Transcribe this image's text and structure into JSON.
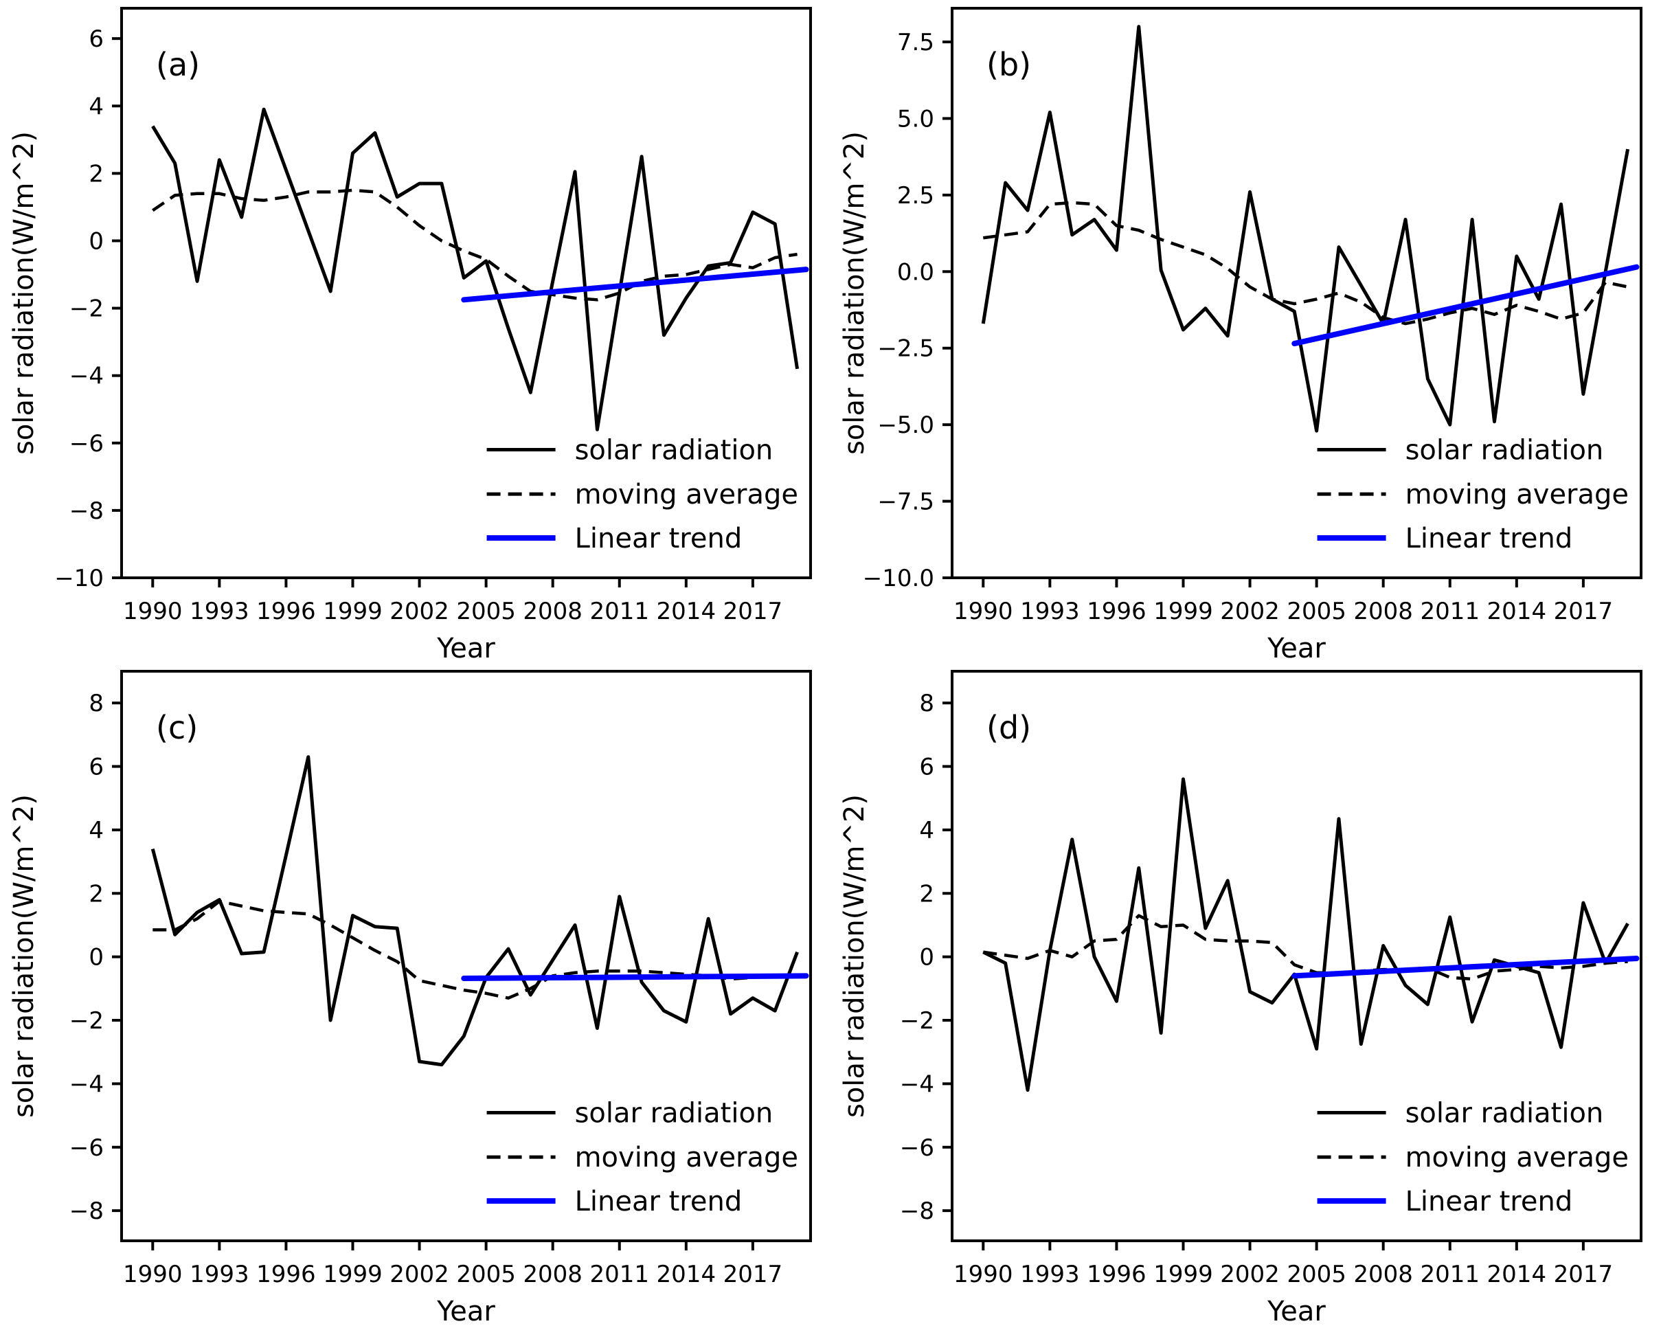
{
  "figure": {
    "background": "#ffffff",
    "text_color": "#000000",
    "accent_blue": "#0000ff",
    "xlabel": "Year",
    "ylabel": "solar radiation(W/m^2)",
    "legend_entries": [
      "solar radiation",
      "moving average",
      "Linear trend"
    ],
    "legend_position": "lower right",
    "grid": false,
    "xlim": [
      1988.6,
      2019.6
    ],
    "xtick_years": [
      1990,
      1993,
      1996,
      1999,
      2002,
      2005,
      2008,
      2011,
      2014,
      2017
    ],
    "xtick_labels": [
      "1990",
      "1993",
      "1996",
      "1999",
      "2002",
      "2005",
      "2008",
      "2011",
      "2014",
      "2017"
    ]
  },
  "chart_data": [
    {
      "type": "line",
      "panel": "(a)",
      "xlabel": "Year",
      "ylabel": "solar radiation(W/m^2)",
      "ylim": [
        -10,
        6.9
      ],
      "yticks": [
        6,
        4,
        2,
        0,
        -2,
        -4,
        -6,
        -8,
        -10
      ],
      "ytick_labels": [
        "6",
        "4",
        "2",
        "0",
        "−2",
        "−4",
        "−6",
        "−8",
        "−10"
      ],
      "x": [
        1990,
        1991,
        1992,
        1993,
        1994,
        1995,
        1996,
        1997,
        1998,
        1999,
        2000,
        2001,
        2002,
        2003,
        2004,
        2005,
        2006,
        2007,
        2008,
        2009,
        2010,
        2011,
        2012,
        2013,
        2014,
        2015,
        2016,
        2017,
        2018,
        2019
      ],
      "series": [
        {
          "name": "solar radiation",
          "style": "solid",
          "color": "#000000",
          "values": [
            3.4,
            2.3,
            -1.2,
            2.4,
            0.7,
            3.9,
            2.1,
            0.3,
            -1.5,
            2.6,
            3.2,
            1.3,
            1.7,
            1.7,
            -1.1,
            -0.6,
            -2.6,
            -4.5,
            -1.2,
            2.05,
            -5.6,
            -1.55,
            2.5,
            -2.8,
            -1.7,
            -0.75,
            -0.65,
            0.85,
            0.5,
            -3.8
          ]
        },
        {
          "name": "moving average",
          "style": "dashed",
          "color": "#000000",
          "values": [
            0.9,
            1.35,
            1.4,
            1.4,
            1.25,
            1.2,
            1.3,
            1.45,
            1.45,
            1.5,
            1.45,
            1.0,
            0.45,
            0.0,
            -0.3,
            -0.55,
            -1.05,
            -1.5,
            -1.6,
            -1.7,
            -1.75,
            -1.55,
            -1.2,
            -1.05,
            -1.0,
            -0.85,
            -0.7,
            -0.8,
            -0.5,
            -0.4
          ]
        },
        {
          "name": "Linear trend",
          "style": "solid",
          "color": "#0000ff",
          "x": [
            2004,
            2019.4
          ],
          "values": [
            -1.75,
            -0.85
          ]
        }
      ]
    },
    {
      "type": "line",
      "panel": "(b)",
      "xlabel": "Year",
      "ylabel": "solar radiation(W/m^2)",
      "ylim": [
        -10,
        8.6
      ],
      "yticks": [
        7.5,
        5.0,
        2.5,
        0.0,
        -2.5,
        -5.0,
        -7.5,
        -10.0
      ],
      "ytick_labels": [
        "7.5",
        "5.0",
        "2.5",
        "0.0",
        "−2.5",
        "−5.0",
        "−7.5",
        "−10.0"
      ],
      "x": [
        1990,
        1991,
        1992,
        1993,
        1994,
        1995,
        1996,
        1997,
        1998,
        1999,
        2000,
        2001,
        2002,
        2003,
        2004,
        2005,
        2006,
        2007,
        2008,
        2009,
        2010,
        2011,
        2012,
        2013,
        2014,
        2015,
        2016,
        2017,
        2018,
        2019
      ],
      "series": [
        {
          "name": "solar radiation",
          "style": "solid",
          "color": "#000000",
          "values": [
            -1.7,
            2.9,
            2.0,
            5.2,
            1.2,
            1.7,
            0.7,
            8.0,
            0.05,
            -1.9,
            -1.2,
            -2.1,
            2.6,
            -0.9,
            -1.3,
            -5.2,
            0.8,
            -0.45,
            -1.7,
            1.7,
            -3.5,
            -5.0,
            1.7,
            -4.9,
            0.5,
            -0.9,
            2.2,
            -4.0,
            0.0,
            4.0
          ]
        },
        {
          "name": "moving average",
          "style": "dashed",
          "color": "#000000",
          "values": [
            1.1,
            1.2,
            1.3,
            2.2,
            2.25,
            2.2,
            1.5,
            1.35,
            1.05,
            0.8,
            0.55,
            0.1,
            -0.5,
            -0.9,
            -1.05,
            -0.9,
            -0.7,
            -1.0,
            -1.5,
            -1.7,
            -1.55,
            -1.35,
            -1.2,
            -1.4,
            -1.1,
            -1.3,
            -1.55,
            -1.35,
            -0.35,
            -0.5
          ]
        },
        {
          "name": "Linear trend",
          "style": "solid",
          "color": "#0000ff",
          "x": [
            2004,
            2019.4
          ],
          "values": [
            -2.35,
            0.15
          ]
        }
      ]
    },
    {
      "type": "line",
      "panel": "(c)",
      "xlabel": "Year",
      "ylabel": "solar radiation(W/m^2)",
      "ylim": [
        -8.95,
        9.0
      ],
      "yticks": [
        8,
        6,
        4,
        2,
        0,
        -2,
        -4,
        -6,
        -8
      ],
      "ytick_labels": [
        "8",
        "6",
        "4",
        "2",
        "0",
        "−2",
        "−4",
        "−6",
        "−8"
      ],
      "x": [
        1990,
        1991,
        1992,
        1993,
        1994,
        1995,
        1996,
        1997,
        1998,
        1999,
        2000,
        2001,
        2002,
        2003,
        2004,
        2005,
        2006,
        2007,
        2008,
        2009,
        2010,
        2011,
        2012,
        2013,
        2014,
        2015,
        2016,
        2017,
        2018,
        2019
      ],
      "series": [
        {
          "name": "solar radiation",
          "style": "solid",
          "color": "#000000",
          "values": [
            3.4,
            0.7,
            1.4,
            1.8,
            0.1,
            0.15,
            3.2,
            6.3,
            -2.0,
            1.3,
            0.95,
            0.9,
            -3.3,
            -3.4,
            -2.5,
            -0.65,
            0.25,
            -1.2,
            -0.1,
            1.0,
            -2.25,
            1.9,
            -0.8,
            -1.7,
            -2.05,
            1.2,
            -1.8,
            -1.3,
            -1.7,
            0.15
          ]
        },
        {
          "name": "moving average",
          "style": "dashed",
          "color": "#000000",
          "values": [
            0.85,
            0.85,
            1.2,
            1.75,
            1.6,
            1.45,
            1.4,
            1.35,
            1.0,
            0.6,
            0.2,
            -0.15,
            -0.75,
            -0.9,
            -1.05,
            -1.15,
            -1.3,
            -1.0,
            -0.6,
            -0.5,
            -0.45,
            -0.45,
            -0.45,
            -0.5,
            -0.55,
            -0.6,
            -0.7,
            -0.65,
            -0.6,
            -0.6
          ]
        },
        {
          "name": "Linear trend",
          "style": "solid",
          "color": "#0000ff",
          "x": [
            2004,
            2019.4
          ],
          "values": [
            -0.68,
            -0.6
          ]
        }
      ]
    },
    {
      "type": "line",
      "panel": "(d)",
      "xlabel": "Year",
      "ylabel": "solar radiation(W/m^2)",
      "ylim": [
        -8.95,
        9.0
      ],
      "yticks": [
        8,
        6,
        4,
        2,
        0,
        -2,
        -4,
        -6,
        -8
      ],
      "ytick_labels": [
        "8",
        "6",
        "4",
        "2",
        "0",
        "−2",
        "−4",
        "−6",
        "−8"
      ],
      "x": [
        1990,
        1991,
        1992,
        1993,
        1994,
        1995,
        1996,
        1997,
        1998,
        1999,
        2000,
        2001,
        2002,
        2003,
        2004,
        2005,
        2006,
        2007,
        2008,
        2009,
        2010,
        2011,
        2012,
        2013,
        2014,
        2015,
        2016,
        2017,
        2018,
        2019
      ],
      "series": [
        {
          "name": "solar radiation",
          "style": "solid",
          "color": "#000000",
          "values": [
            0.15,
            -0.2,
            -4.2,
            0.2,
            3.7,
            0.0,
            -1.4,
            2.8,
            -2.4,
            5.6,
            0.9,
            2.4,
            -1.1,
            -1.45,
            -0.55,
            -2.9,
            4.35,
            -2.75,
            0.35,
            -0.9,
            -1.5,
            1.25,
            -2.05,
            -0.1,
            -0.3,
            -0.5,
            -2.85,
            1.7,
            -0.2,
            1.05
          ]
        },
        {
          "name": "moving average",
          "style": "dashed",
          "color": "#000000",
          "values": [
            0.15,
            0.05,
            -0.05,
            0.2,
            0.0,
            0.5,
            0.55,
            1.3,
            0.95,
            1.0,
            0.55,
            0.5,
            0.5,
            0.45,
            -0.25,
            -0.5,
            -0.5,
            -0.45,
            -0.4,
            -0.4,
            -0.35,
            -0.65,
            -0.7,
            -0.45,
            -0.4,
            -0.3,
            -0.35,
            -0.3,
            -0.2,
            -0.15
          ]
        },
        {
          "name": "Linear trend",
          "style": "solid",
          "color": "#0000ff",
          "x": [
            2004,
            2019.4
          ],
          "values": [
            -0.6,
            -0.05
          ]
        }
      ]
    }
  ]
}
